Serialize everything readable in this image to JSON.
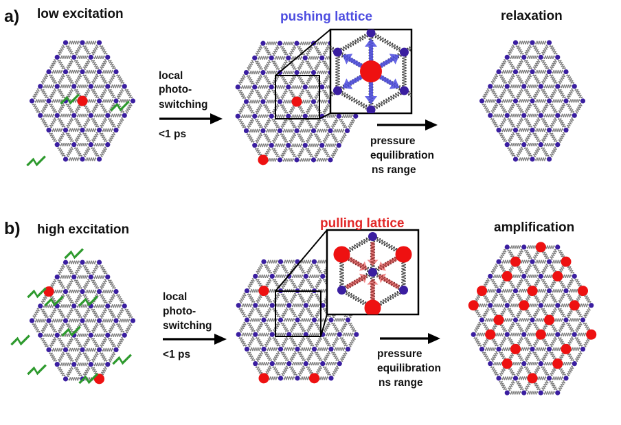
{
  "colors": {
    "atom": "#3a1ea0",
    "excited": "#ee1111",
    "bond": "#7a7a7a",
    "spring": "#333333",
    "flash": "#2e9a2e",
    "push": "#4d4de0",
    "pull": "#e22828",
    "text": "#111111"
  },
  "panel_a": {
    "letter": "a)",
    "title": "low excitation",
    "inset_title": "pushing lattice",
    "result": "relaxation",
    "step1": [
      "local",
      "photo-",
      "switching",
      "<1 ps"
    ],
    "step2": [
      "pressure",
      "equilibration",
      "ns range"
    ]
  },
  "panel_b": {
    "letter": "b)",
    "title": "high excitation",
    "inset_title": "pulling lattice",
    "result": "amplification",
    "step1": [
      "local",
      "photo-",
      "switching",
      "<1 ps"
    ],
    "step2": [
      "pressure",
      "equilibration",
      "ns range"
    ]
  },
  "icons": {
    "flash": "lightning-icon",
    "arrow": "right-arrow"
  }
}
